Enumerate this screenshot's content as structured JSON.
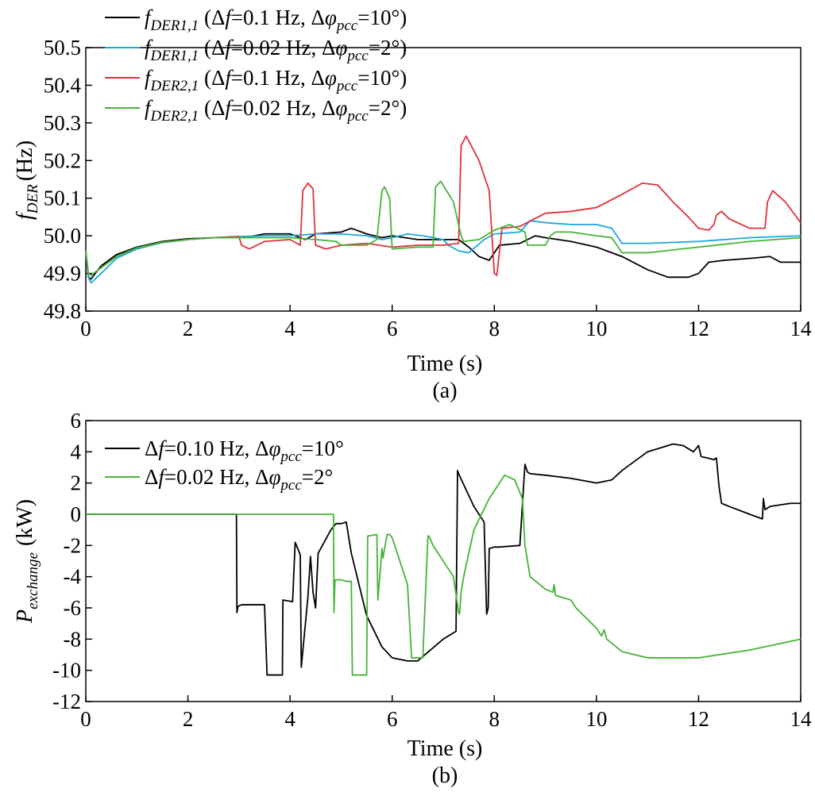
{
  "chart_data": [
    {
      "type": "line",
      "panel_label": "(a)",
      "xlabel": "Time (s)",
      "ylabel": "f",
      "ylabel_sub": "DER",
      "ylabel_unit": "(Hz)",
      "xlim": [
        0,
        14
      ],
      "ylim": [
        49.8,
        50.5
      ],
      "xticks": [
        0,
        2,
        4,
        6,
        8,
        10,
        12,
        14
      ],
      "yticks": [
        49.8,
        49.9,
        50.0,
        50.1,
        50.2,
        50.3,
        50.4,
        50.5
      ],
      "ytick_labels": [
        "49.8",
        "49.9",
        "50.0",
        "50.1",
        "50.2",
        "50.3",
        "50.4",
        "50.5"
      ],
      "grid": false,
      "legend_position": "top-left",
      "series": [
        {
          "name": "f_DER1,1 (Δf=0.1 Hz, Δφ_pcc=10°)",
          "legend": {
            "main": "f",
            "sub": "DER1,1",
            "rest1": " (Δ",
            "f": "f",
            "rest2": "=0.1 Hz, Δ",
            "phi": "φ",
            "phisub": "pcc",
            "rest3": "=10°)"
          },
          "color": "#000000",
          "x": [
            0,
            0.05,
            0.1,
            0.3,
            0.6,
            1.0,
            1.5,
            2.0,
            2.5,
            3.0,
            3.1,
            3.5,
            4.0,
            4.3,
            4.5,
            5.0,
            5.2,
            5.5,
            5.8,
            6.0,
            6.5,
            7.0,
            7.3,
            7.5,
            7.7,
            7.9,
            8.1,
            8.5,
            8.8,
            9.0,
            9.5,
            10.0,
            10.5,
            11.0,
            11.4,
            11.8,
            12.0,
            12.2,
            12.5,
            13.0,
            13.4,
            13.6,
            14.0
          ],
          "values": [
            49.96,
            49.89,
            49.885,
            49.92,
            49.95,
            49.97,
            49.985,
            49.992,
            49.995,
            49.998,
            49.995,
            50.005,
            50.005,
            49.99,
            50.005,
            50.01,
            50.02,
            50.005,
            49.995,
            50.0,
            49.99,
            49.99,
            49.99,
            49.97,
            49.945,
            49.935,
            49.975,
            49.98,
            50.0,
            49.995,
            49.985,
            49.97,
            49.945,
            49.91,
            49.89,
            49.89,
            49.9,
            49.93,
            49.935,
            49.94,
            49.945,
            49.93,
            49.93
          ]
        },
        {
          "name": "f_DER1,1 (Δf=0.02 Hz, Δφ_pcc=2°)",
          "legend": {
            "main": "f",
            "sub": "DER1,1",
            "rest1": " (Δ",
            "f": "f",
            "rest2": "=0.02 Hz, Δ",
            "phi": "φ",
            "phisub": "pcc",
            "rest3": "=2°)"
          },
          "color": "#1aa7e0",
          "x": [
            0,
            0.05,
            0.1,
            0.3,
            0.6,
            1.0,
            1.5,
            2.0,
            2.5,
            3.0,
            3.5,
            4.0,
            4.5,
            5.0,
            5.5,
            5.8,
            6.0,
            6.3,
            6.6,
            7.0,
            7.1,
            7.3,
            7.5,
            7.8,
            8.0,
            8.5,
            8.7,
            9.0,
            9.5,
            10.0,
            10.3,
            10.5,
            11.0,
            12.0,
            13.0,
            14.0
          ],
          "values": [
            49.96,
            49.89,
            49.875,
            49.9,
            49.94,
            49.965,
            49.982,
            49.99,
            49.995,
            49.998,
            50.0,
            50.0,
            50.005,
            50.005,
            50.0,
            49.99,
            49.995,
            50.005,
            50.0,
            49.99,
            49.975,
            49.96,
            49.955,
            49.99,
            50.005,
            50.01,
            50.04,
            50.035,
            50.03,
            50.03,
            50.02,
            49.98,
            49.98,
            49.985,
            49.995,
            50.0
          ]
        },
        {
          "name": "f_DER2,1 (Δf=0.1 Hz, Δφ_pcc=10°)",
          "legend": {
            "main": "f",
            "sub": "DER2,1",
            "rest1": " (Δ",
            "f": "f",
            "rest2": "=0.1 Hz, Δ",
            "phi": "φ",
            "phisub": "pcc",
            "rest3": "=10°)"
          },
          "color": "#e0313a",
          "x": [
            0,
            0.05,
            0.1,
            0.3,
            0.6,
            1.0,
            1.5,
            2.0,
            2.5,
            3.0,
            3.05,
            3.2,
            3.5,
            4.0,
            4.2,
            4.25,
            4.35,
            4.45,
            4.5,
            4.7,
            5.0,
            5.5,
            6.0,
            6.5,
            7.0,
            7.3,
            7.35,
            7.45,
            7.7,
            7.9,
            8.0,
            8.05,
            8.15,
            8.5,
            9.0,
            9.5,
            10.0,
            10.5,
            10.9,
            11.2,
            11.5,
            11.8,
            12.0,
            12.2,
            12.3,
            12.35,
            12.45,
            12.6,
            13.0,
            13.3,
            13.35,
            13.45,
            13.7,
            14.0
          ],
          "values": [
            49.96,
            49.9,
            49.895,
            49.915,
            49.945,
            49.968,
            49.983,
            49.99,
            49.995,
            49.998,
            49.975,
            49.965,
            49.985,
            49.99,
            49.975,
            50.12,
            50.14,
            50.125,
            49.975,
            49.965,
            49.975,
            49.98,
            49.97,
            49.975,
            49.975,
            49.98,
            50.24,
            50.265,
            50.2,
            50.12,
            49.9,
            49.895,
            50.02,
            50.025,
            50.06,
            50.065,
            50.075,
            50.11,
            50.14,
            50.135,
            50.09,
            50.05,
            50.02,
            50.015,
            50.03,
            50.055,
            50.065,
            50.045,
            50.02,
            50.02,
            50.09,
            50.12,
            50.09,
            50.035
          ]
        },
        {
          "name": "f_DER2,1 (Δf=0.02 Hz, Δφ_pcc=2°)",
          "legend": {
            "main": "f",
            "sub": "DER2,1",
            "rest1": " (Δ",
            "f": "f",
            "rest2": "=0.02 Hz, Δ",
            "phi": "φ",
            "phisub": "pcc",
            "rest3": "=2°)"
          },
          "color": "#45b337",
          "x": [
            0,
            0.05,
            0.1,
            0.3,
            0.6,
            1.0,
            1.5,
            2.0,
            2.5,
            3.0,
            3.5,
            4.0,
            4.5,
            4.9,
            5.0,
            5.5,
            5.7,
            5.8,
            5.85,
            5.95,
            6.0,
            6.5,
            6.8,
            6.85,
            6.95,
            7.2,
            7.35,
            7.4,
            7.7,
            8.0,
            8.3,
            8.6,
            8.65,
            8.8,
            9.0,
            9.1,
            9.2,
            9.5,
            10.0,
            10.3,
            10.5,
            11.0,
            12.0,
            13.0,
            14.0
          ],
          "values": [
            49.96,
            49.9,
            49.895,
            49.915,
            49.945,
            49.968,
            49.983,
            49.99,
            49.995,
            49.995,
            49.995,
            49.995,
            49.99,
            49.985,
            49.975,
            49.975,
            49.99,
            50.12,
            50.13,
            50.1,
            49.965,
            49.97,
            49.97,
            50.13,
            50.145,
            50.09,
            50.0,
            49.985,
            49.99,
            50.015,
            50.03,
            50.01,
            49.975,
            49.975,
            49.975,
            50.0,
            50.01,
            50.01,
            50.0,
            49.995,
            49.955,
            49.955,
            49.97,
            49.985,
            49.995
          ]
        }
      ]
    },
    {
      "type": "line",
      "panel_label": "(b)",
      "xlabel": "Time (s)",
      "ylabel": "P",
      "ylabel_sub": "exchange",
      "ylabel_unit": "(kW)",
      "xlim": [
        0,
        14
      ],
      "ylim": [
        -12,
        6
      ],
      "xticks": [
        0,
        2,
        4,
        6,
        8,
        10,
        12,
        14
      ],
      "yticks": [
        -12,
        -10,
        -8,
        -6,
        -4,
        -2,
        0,
        2,
        4,
        6
      ],
      "ytick_labels": [
        "-12",
        "-10",
        "-8",
        "-6",
        "-4",
        "-2",
        "0",
        "2",
        "4",
        "6"
      ],
      "grid": false,
      "legend_position": "top-left",
      "series": [
        {
          "name": "Δf=0.10 Hz, Δφ_pcc=10°",
          "legend": {
            "main": "",
            "sub": "",
            "rest1": "Δ",
            "f": "f",
            "rest2": "=0.10 Hz, Δ",
            "phi": "φ",
            "phisub": "pcc",
            "rest3": "=10°"
          },
          "color": "#000000",
          "x": [
            0,
            2.95,
            2.96,
            2.98,
            3.05,
            3.5,
            3.55,
            3.56,
            3.85,
            3.86,
            4.05,
            4.1,
            4.15,
            4.2,
            4.22,
            4.35,
            4.4,
            4.45,
            4.5,
            4.55,
            4.8,
            4.9,
            5.0,
            5.1,
            5.2,
            5.5,
            5.8,
            6.0,
            6.3,
            6.5,
            7.0,
            7.25,
            7.28,
            7.3,
            7.6,
            7.8,
            7.85,
            7.88,
            7.9,
            8.0,
            8.1,
            8.5,
            8.6,
            8.62,
            8.65,
            8.7,
            9.0,
            9.5,
            10.0,
            10.3,
            10.5,
            11.0,
            11.5,
            11.7,
            11.9,
            12.0,
            12.05,
            12.3,
            12.35,
            12.4,
            12.45,
            12.6,
            13.0,
            13.25,
            13.27,
            13.3,
            13.4,
            13.8,
            14.0
          ],
          "values": [
            0,
            0,
            -6.3,
            -5.9,
            -5.8,
            -5.8,
            -10.3,
            -10.3,
            -10.3,
            -5.5,
            -5.6,
            -1.8,
            -2.2,
            -2.6,
            -9.8,
            -5.3,
            -2.7,
            -5.0,
            -6.0,
            -2.5,
            -1.0,
            -0.6,
            -0.6,
            -0.5,
            -2.5,
            -6.5,
            -8.5,
            -9.2,
            -9.4,
            -9.4,
            -8.0,
            -7.5,
            2.8,
            2.6,
            0.5,
            -0.5,
            -6.4,
            -6.0,
            -2.2,
            -2.1,
            -2.1,
            -2.0,
            3.2,
            3.0,
            2.7,
            2.6,
            2.5,
            2.3,
            2.0,
            2.2,
            2.8,
            4.0,
            4.5,
            4.4,
            4.0,
            4.4,
            3.7,
            3.5,
            3.6,
            1.8,
            0.7,
            0.5,
            0.0,
            -0.3,
            1.0,
            0.3,
            0.5,
            0.7,
            0.7
          ]
        },
        {
          "name": "Δf=0.02 Hz, Δφ_pcc=2°",
          "legend": {
            "main": "",
            "sub": "",
            "rest1": "Δ",
            "f": "f",
            "rest2": "=0.02 Hz, Δ",
            "phi": "φ",
            "phisub": "pcc",
            "rest3": "=2°"
          },
          "color": "#45b337",
          "x": [
            0,
            4.85,
            4.86,
            4.88,
            5.0,
            5.1,
            5.2,
            5.22,
            5.5,
            5.52,
            5.7,
            5.72,
            5.8,
            5.82,
            5.9,
            5.95,
            6.0,
            6.3,
            6.38,
            6.4,
            6.6,
            6.7,
            6.72,
            6.8,
            7.0,
            7.2,
            7.3,
            7.32,
            7.35,
            7.4,
            7.6,
            7.9,
            8.2,
            8.4,
            8.55,
            8.6,
            8.7,
            9.0,
            9.15,
            9.17,
            9.2,
            9.5,
            9.6,
            10.0,
            10.1,
            10.15,
            10.2,
            10.5,
            11.0,
            12.0,
            13.0,
            14.0
          ],
          "values": [
            0,
            0,
            -6.3,
            -4.2,
            -4.2,
            -4.3,
            -4.3,
            -10.3,
            -10.3,
            -1.4,
            -1.3,
            -5.5,
            -2.2,
            -2.8,
            -1.3,
            -1.3,
            -1.5,
            -4.5,
            -9.2,
            -9.2,
            -9.2,
            -1.4,
            -1.4,
            -2.0,
            -3.0,
            -4.0,
            -6.3,
            -6.4,
            -5.0,
            -4.0,
            -1.0,
            1.0,
            2.5,
            2.2,
            1.0,
            -2.0,
            -4.0,
            -4.8,
            -5.0,
            -4.5,
            -5.2,
            -5.5,
            -6.0,
            -7.3,
            -7.8,
            -7.4,
            -8.0,
            -8.8,
            -9.2,
            -9.2,
            -8.7,
            -8.0
          ]
        }
      ]
    }
  ]
}
